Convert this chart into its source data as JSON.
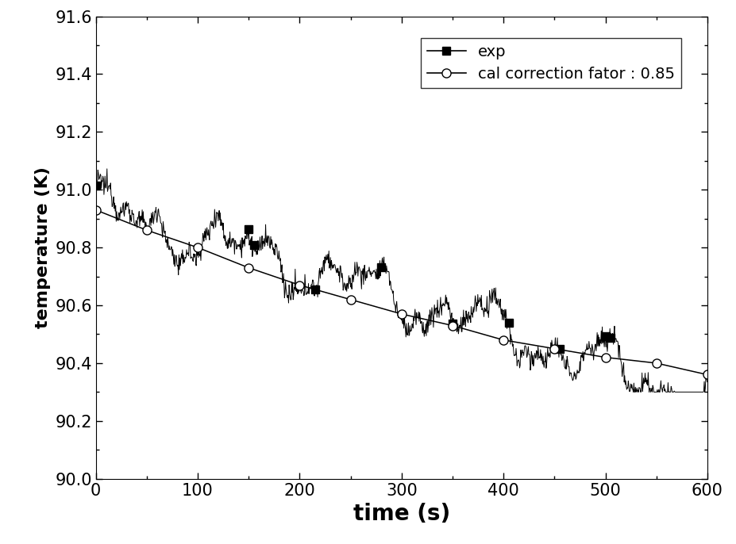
{
  "title": "",
  "xlabel": "time (s)",
  "ylabel": "temperature (K)",
  "xlim": [
    0,
    600
  ],
  "ylim": [
    90.0,
    91.6
  ],
  "xticks": [
    0,
    100,
    200,
    300,
    400,
    500,
    600
  ],
  "yticks": [
    90.0,
    90.2,
    90.4,
    90.6,
    90.8,
    91.0,
    91.2,
    91.4,
    91.6
  ],
  "legend_entries": [
    "exp",
    "cal correction fator : 0.85"
  ],
  "exp_color": "#000000",
  "cal_color": "#000000",
  "background_color": "#ffffff",
  "xlabel_fontsize": 20,
  "ylabel_fontsize": 16,
  "tick_fontsize": 15,
  "legend_fontsize": 14,
  "cal_t": [
    0,
    50,
    100,
    150,
    200,
    250,
    300,
    350,
    400,
    450,
    500,
    550,
    600
  ],
  "cal_T": [
    90.93,
    90.86,
    90.8,
    90.73,
    90.67,
    90.62,
    90.57,
    90.53,
    90.48,
    90.45,
    90.42,
    90.4,
    90.36
  ],
  "exp_markers_t": [
    0,
    150,
    155,
    210,
    215,
    270,
    280,
    350,
    400,
    455,
    460,
    500,
    505
  ],
  "exp_markers_T": [
    91.0,
    90.8,
    90.8,
    90.52,
    90.52,
    90.58,
    90.58,
    90.46,
    90.44,
    90.55,
    90.55,
    90.45,
    90.45
  ]
}
